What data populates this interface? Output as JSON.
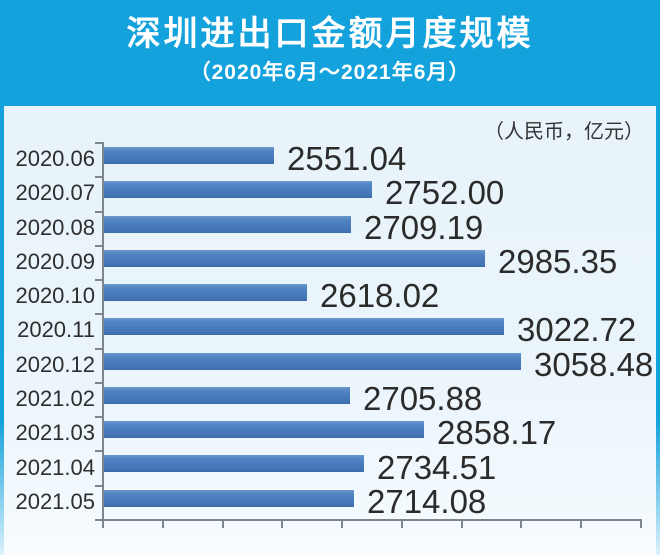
{
  "header": {
    "title": "深圳进出口金额月度规模",
    "subtitle": "（2020年6月～2021年6月）"
  },
  "unit_label": "（人民币，亿元）",
  "colors": {
    "banner_blue": "#14a2dc",
    "bar_blue": "#4a7cbd",
    "background": "#eaf5fb",
    "text_dark": "#2e2e2e",
    "axis_gray": "#7d868e"
  },
  "chart_data": {
    "type": "bar",
    "orientation": "horizontal",
    "title": "深圳进出口金额月度规模",
    "subtitle": "2020年6月～2021年6月",
    "unit": "人民币，亿元",
    "categories": [
      "2020.06",
      "2020.07",
      "2020.08",
      "2020.09",
      "2020.10",
      "2020.11",
      "2020.12",
      "2021.02",
      "2021.03",
      "2021.04",
      "2021.05"
    ],
    "values": [
      2551.04,
      2752.0,
      2709.19,
      2985.35,
      2618.02,
      3022.72,
      3058.48,
      2705.88,
      2858.17,
      2734.51,
      2714.08
    ],
    "values_fmt": [
      "2551.04",
      "2752.00",
      "2709.19",
      "2985.35",
      "2618.02",
      "3022.72",
      "3058.48",
      "2705.88",
      "2858.17",
      "2734.51",
      "2714.08"
    ],
    "value_labels": "end-of-bar",
    "xlim": [
      2200,
      3310
    ],
    "x_tick_count": 10,
    "tick_labels_visible": false,
    "grid": false,
    "legend": "none"
  }
}
